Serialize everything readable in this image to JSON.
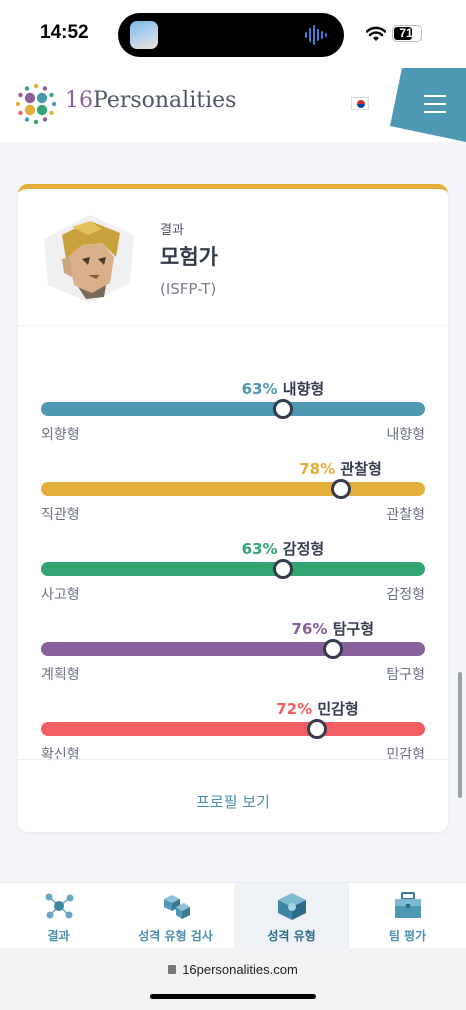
{
  "status_bar": {
    "time": "14:52",
    "battery": "71",
    "battery_level": 0.71
  },
  "header": {
    "logo_number": "16",
    "logo_word": "Personalities",
    "language_flag": "korea-flag-icon",
    "menu_icon": "hamburger-menu-icon",
    "colors": {
      "menu_tab": "#4e98b4",
      "logo_purple": "#88619a"
    }
  },
  "result": {
    "label": "결과",
    "type_name": "모험가",
    "type_code": "(ISFP-T)"
  },
  "traits": [
    {
      "percent": "63%",
      "percent_value": 63,
      "name": "내향형",
      "left": "외향형",
      "right": "내향형",
      "position": 0.63,
      "color": "#4e98b4"
    },
    {
      "percent": "78%",
      "percent_value": 78,
      "name": "관찰형",
      "left": "직관형",
      "right": "관찰형",
      "position": 0.78,
      "color": "#e4ae3a"
    },
    {
      "percent": "63%",
      "percent_value": 63,
      "name": "감정형",
      "left": "사고형",
      "right": "감정형",
      "position": 0.63,
      "color": "#33a474"
    },
    {
      "percent": "76%",
      "percent_value": 76,
      "name": "탐구형",
      "left": "계획형",
      "right": "탐구형",
      "position": 0.76,
      "color": "#88619a"
    },
    {
      "percent": "72%",
      "percent_value": 72,
      "name": "민감형",
      "left": "확신형",
      "right": "민감형",
      "position": 0.72,
      "color": "#f25e62"
    }
  ],
  "profile_link": "프로필 보기",
  "bottom_nav": [
    {
      "label": "결과",
      "icon": "molecule-icon",
      "active": false
    },
    {
      "label": "성격 유형 검사",
      "icon": "puzzle-cubes-icon",
      "active": false
    },
    {
      "label": "성격 유형",
      "icon": "type-cube-icon",
      "active": true
    },
    {
      "label": "팀 평가",
      "icon": "briefcase-icon",
      "active": false
    }
  ],
  "browser": {
    "url": "16personalities.com"
  }
}
